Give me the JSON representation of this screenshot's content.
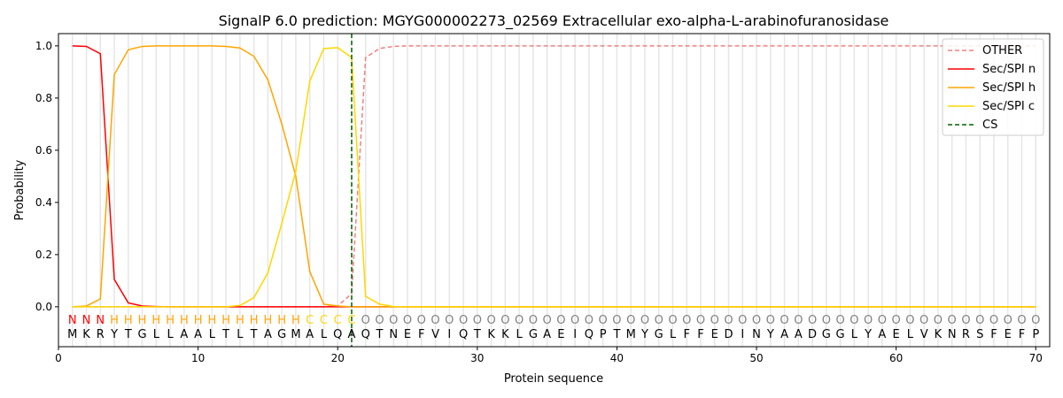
{
  "chart_data": {
    "type": "line",
    "title": "SignalP 6.0 prediction: MGYG000002273_02569 Extracellular exo-alpha-L-arabinofuranosidase",
    "xlabel": "Protein sequence",
    "ylabel": "Probability",
    "xlim": [
      0,
      71
    ],
    "ylim": [
      -0.153,
      1.047
    ],
    "xticks": [
      0,
      10,
      20,
      30,
      40,
      50,
      60,
      70
    ],
    "yticks": [
      0.0,
      0.2,
      0.4,
      0.6,
      0.8,
      1.0
    ],
    "legend_position": "top-right",
    "sequence": "MKRYTGLLAALTLTAGMALQAQTNEFVIQTKKLGAEIQPTMYGLFFEDINYAADGGLYAELVKNRSFEFP",
    "labels": "NNNHHHHHHHHHHHHHHCCCCOOOOOOOOOOOOOOOOOOOOOOOOOOOOOOOOOOOOOOOOOOOOOOOOO",
    "label_colors": {
      "N": "#ff0000",
      "H": "#ffa500",
      "C": "#ffd700",
      "O": "#808080"
    },
    "cs_position": 21,
    "series": [
      {
        "name": "OTHER",
        "color": "#f08080",
        "dash": true,
        "values": [
          0,
          0,
          0,
          0,
          0,
          0,
          0,
          0,
          0,
          0,
          0,
          0,
          0,
          0,
          0,
          0,
          0,
          0,
          0,
          0.003,
          0.05,
          0.955,
          0.99,
          0.998,
          1,
          1,
          1,
          1,
          1,
          1,
          1,
          1,
          1,
          1,
          1,
          1,
          1,
          1,
          1,
          1,
          1,
          1,
          1,
          1,
          1,
          1,
          1,
          1,
          1,
          1,
          1,
          1,
          1,
          1,
          1,
          1,
          1,
          1,
          1,
          1,
          1,
          1,
          1,
          1,
          1,
          1,
          1,
          1,
          1,
          1
        ]
      },
      {
        "name": "Sec/SPI n",
        "color": "#ff0000",
        "values": [
          1.0,
          0.998,
          0.97,
          0.105,
          0.015,
          0.003,
          0.001,
          0,
          0,
          0,
          0,
          0,
          0,
          0,
          0,
          0,
          0,
          0,
          0,
          0,
          0,
          0,
          0,
          0,
          0,
          0,
          0,
          0,
          0,
          0,
          0,
          0,
          0,
          0,
          0,
          0,
          0,
          0,
          0,
          0,
          0,
          0,
          0,
          0,
          0,
          0,
          0,
          0,
          0,
          0,
          0,
          0,
          0,
          0,
          0,
          0,
          0,
          0,
          0,
          0,
          0,
          0,
          0,
          0,
          0,
          0,
          0,
          0,
          0,
          0
        ]
      },
      {
        "name": "Sec/SPI h",
        "color": "#ffa500",
        "values": [
          0,
          0.003,
          0.03,
          0.89,
          0.985,
          0.998,
          1,
          1,
          1,
          1,
          1,
          0.998,
          0.992,
          0.96,
          0.87,
          0.7,
          0.5,
          0.135,
          0.01,
          0.003,
          0,
          0,
          0,
          0,
          0,
          0,
          0,
          0,
          0,
          0,
          0,
          0,
          0,
          0,
          0,
          0,
          0,
          0,
          0,
          0,
          0,
          0,
          0,
          0,
          0,
          0,
          0,
          0,
          0,
          0,
          0,
          0,
          0,
          0,
          0,
          0,
          0,
          0,
          0,
          0,
          0,
          0,
          0,
          0,
          0,
          0,
          0,
          0,
          0,
          0
        ]
      },
      {
        "name": "Sec/SPI c",
        "color": "#ffd700",
        "values": [
          0,
          0,
          0,
          0,
          0,
          0,
          0,
          0,
          0,
          0,
          0,
          0,
          0.005,
          0.035,
          0.13,
          0.32,
          0.52,
          0.865,
          0.99,
          0.993,
          0.955,
          0.04,
          0.01,
          0.001,
          0,
          0,
          0,
          0,
          0,
          0,
          0,
          0,
          0,
          0,
          0,
          0,
          0,
          0,
          0,
          0,
          0,
          0,
          0,
          0,
          0,
          0,
          0,
          0,
          0,
          0,
          0,
          0,
          0,
          0,
          0,
          0,
          0,
          0,
          0,
          0,
          0,
          0,
          0,
          0,
          0,
          0,
          0,
          0,
          0,
          0
        ]
      }
    ],
    "cs_legend": {
      "name": "CS",
      "color": "#006400"
    }
  }
}
